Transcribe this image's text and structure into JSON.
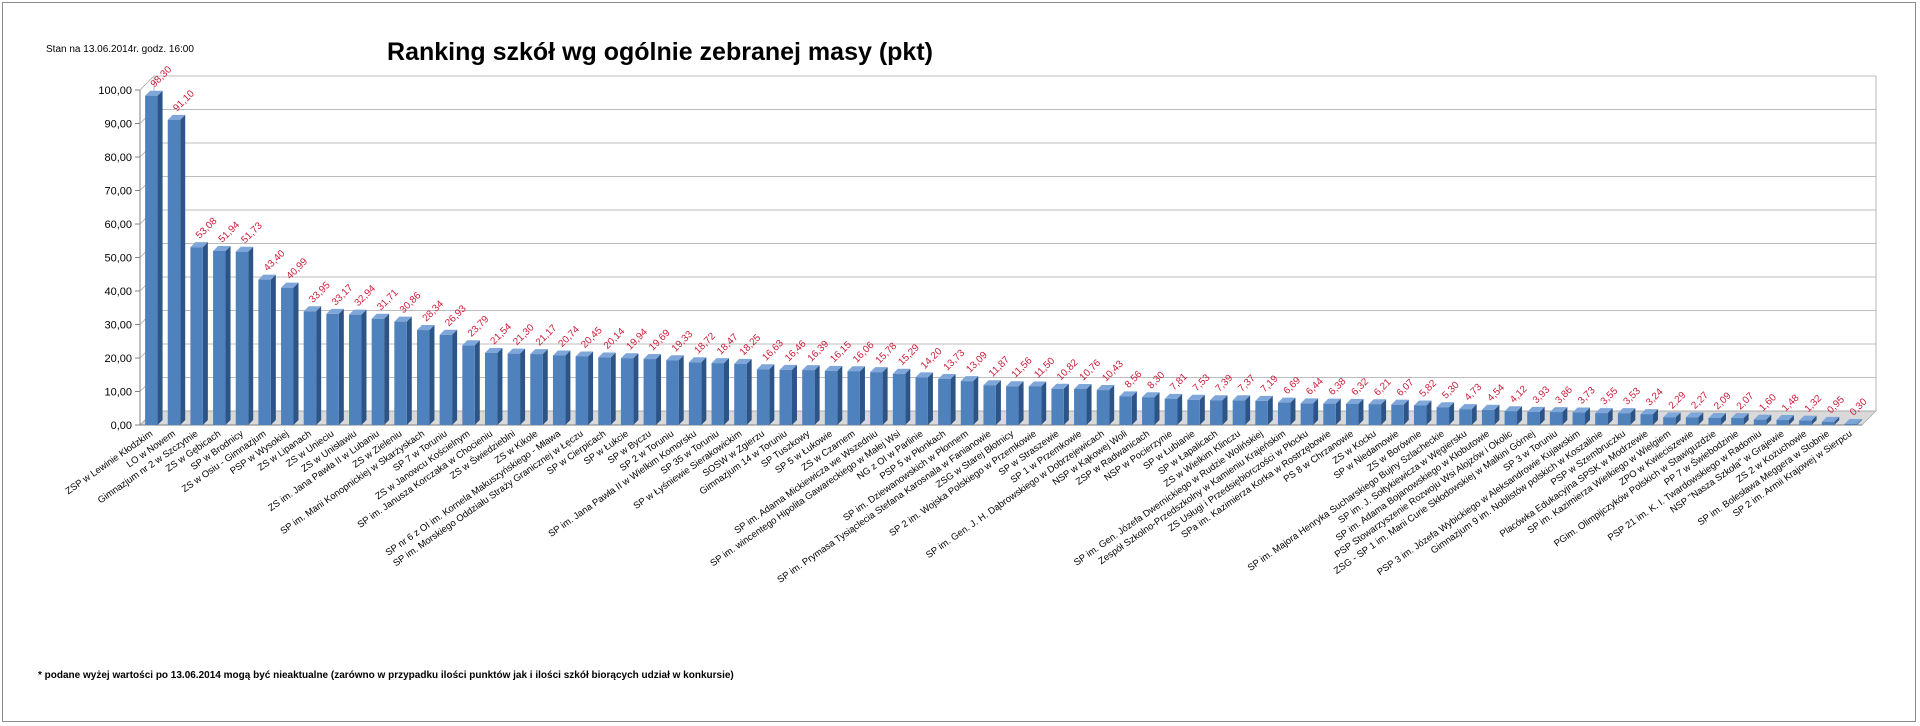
{
  "header": {
    "status": "Stan na 13.06.2014r.  godz. 16:00",
    "footnote": "* podane wyżej wartości po 13.06.2014  mogą być nieaktualne (zarówno w przypadku ilości punktów jak i ilości szkół biorących udział w konkursie)"
  },
  "colors": {
    "bar": "#4f81bd",
    "bar_dark": "#2c5487",
    "bar_light": "#7fa6d9",
    "data_label": "#cc1e3c",
    "grid": "#a6a6a6"
  },
  "chart_data": {
    "type": "bar",
    "title": "Ranking szkół wg ogólnie zebranej masy (pkt)",
    "xlabel": "",
    "ylabel": "",
    "ylim": [
      0,
      100
    ],
    "yticks": [
      "0,00",
      "10,00",
      "20,00",
      "30,00",
      "40,00",
      "50,00",
      "60,00",
      "70,00",
      "80,00",
      "90,00",
      "100,00"
    ],
    "grid": true,
    "legend": "none",
    "categories": [
      "ZSP w Lewinie Kłodzkim",
      "LO w Nowem",
      "Gimnazjum nr 2 w Szczytnie",
      "ZS w Gębicach",
      "SP w Brodnicy",
      "ZS w Osiu - Gimnazjum",
      "PSP w Wysokiej",
      "ZS w Lipanach",
      "ZS w Unieciu",
      "ZS w Unisławiu",
      "ZS im. Jana Pawła II w Lubaniu",
      "ZS w Zieleniu",
      "SP im. Marii Konopnickiej w Skarżyskach",
      "SP 7 w Toruniu",
      "ZS w Janowcu Kościelnym",
      "SP im. Janusza Korczaka w Chocieniu",
      "ZS w Świedzieblni",
      "ZS w Kikole",
      "SP nr 6 z OI im. Kornela Makuszyńskiego - Mława",
      "SP im. Morskiego Oddziału Straży Granicznej w Łęczu",
      "SP w Cierpicach",
      "SP w Łukcie",
      "SP w Byczu",
      "SP 2 w Toruniu",
      "SP im. Jana Pawła II w Wielkim Komorsku",
      "SP 35 w Toruniu",
      "SP w Łyśniewie Sierakowickim",
      "SOSW w Zgierzu",
      "Gimnazjum 14 w Toruniu",
      "SP Tuszkowy",
      "SP 5 w Łukowie",
      "ZS w Czarnem",
      "SP im. Adama Mickiewicza we Wszedniu",
      "SP im. wincentego Hipolita Gawareckiego w Małej Wsi",
      "NG z OI w Parlinie",
      "PSP 5 w Płonkach",
      "SP im. Dziewanowskich w Płonnem",
      "SP im. Prymasa Tysiąclecia Stefana Karosnala w Fanianowie",
      "ZSG w Starej Błotnicy",
      "SP 2 im. Wojska Polskiego w Przemkowie",
      "SP w Straszewie",
      "SP 1 w Przemkowie",
      "SP im. Gen. J. H. Dąbrowskiego w Dobrzejewicach",
      "NSP w Kąkowej Woli",
      "ZSP w Radwanicach",
      "NSP w Pocierzynie",
      "SP w Łubianie",
      "SP w Łapalicach",
      "ZS w Wielkim Klinczu",
      "SP im. Gen. Józefa Dwernickiego w Rudzie Wolińskiej",
      "Zespół Szkolno-Przedszkolny w Kamieniu Krajeńskim",
      "ZS Usługi i Przedsiębiorczości w Płocku",
      "SPa im. Kazimierza Korka w Rostrzębowie",
      "PS 8 w Chrzanowie",
      "ZS w Kocku",
      "SP w Niedamowie",
      "ZS w Borównie",
      "SP im. Majora Henryka Sucharskiego Bujny Szlacheckie",
      "SP im. J. Sołtykiewicza w Węgiersku",
      "SP im. Adama Bojanowskiego w Kłobutowie",
      "PSP Stowarzyszenie Rozwoju Wsi Alojzów i Okolic",
      "ZSG - SP 1 im. Marii Curie Skłodowskiej w Malkini Górnej",
      "SP 3 w Toruniu",
      "PSP 3 im. Józefa Wybickiego w Aleksandrowie Kujawskim",
      "Gimnazjum 9 im. Noblistów polskich w Koszalinie",
      "PSP w Szembruczku",
      "Placówka Edukacyjna SPSK w Modrzewie",
      "SP im. Kazimierza Wielkiego w Wielgiem",
      "ZPO w Kwieciszewie",
      "PGim. Olimpijczyków Polskich w Stawiguzdzie",
      "PP 7 w Świebodzinie",
      "PSP 21 im. K. I. Twardowskiego w Radomiu",
      "NSP \"Nasza Szkoła\" w Grajewie",
      "ZS 2 w Kożuchowie",
      "SP im. Bolesława Meggera w Stobnie",
      "SP 2 im. Armii Krajowej w Sierpcu"
    ],
    "values": [
      98.3,
      91.1,
      53.08,
      51.94,
      51.73,
      43.4,
      40.99,
      33.95,
      33.17,
      32.94,
      31.71,
      30.86,
      28.34,
      26.93,
      23.79,
      21.54,
      21.3,
      21.17,
      20.74,
      20.45,
      20.14,
      19.94,
      19.69,
      19.33,
      18.72,
      18.47,
      18.25,
      16.63,
      16.46,
      16.39,
      16.15,
      16.06,
      15.78,
      15.29,
      14.2,
      13.73,
      13.09,
      11.87,
      11.56,
      11.5,
      10.82,
      10.76,
      10.43,
      8.56,
      8.3,
      7.81,
      7.53,
      7.39,
      7.37,
      7.19,
      6.69,
      6.44,
      6.38,
      6.32,
      6.21,
      6.07,
      5.82,
      5.3,
      4.73,
      4.54,
      4.12,
      3.93,
      3.86,
      3.73,
      3.55,
      3.53,
      3.24,
      2.29,
      2.27,
      2.09,
      2.07,
      1.6,
      1.48,
      1.32,
      0.95,
      0.3
    ],
    "data_labels": [
      "98,30",
      "91,10",
      "53,08",
      "51,94",
      "51,73",
      "43,40",
      "40,99",
      "33,95",
      "33,17",
      "32,94",
      "31,71",
      "30,86",
      "28,34",
      "26,93",
      "23,79",
      "21,54",
      "21,30",
      "21,17",
      "20,74",
      "20,45",
      "20,14",
      "19,94",
      "19,69",
      "19,33",
      "18,72",
      "18,47",
      "18,25",
      "16,63",
      "16,46",
      "16,39",
      "16,15",
      "16,06",
      "15,78",
      "15,29",
      "14,20",
      "13,73",
      "13,09",
      "11,87",
      "11,56",
      "11,50",
      "10,82",
      "10,76",
      "10,43",
      "8,56",
      "8,30",
      "7,81",
      "7,53",
      "7,39",
      "7,37",
      "7,19",
      "6,69",
      "6,44",
      "6,38",
      "6,32",
      "6,21",
      "6,07",
      "5,82",
      "5,30",
      "4,73",
      "4,54",
      "4,12",
      "3,93",
      "3,86",
      "3,73",
      "3,55",
      "3,53",
      "3,24",
      "2,29",
      "2,27",
      "2,09",
      "2,07",
      "1,60",
      "1,48",
      "1,32",
      "0,95",
      "0,30"
    ]
  }
}
